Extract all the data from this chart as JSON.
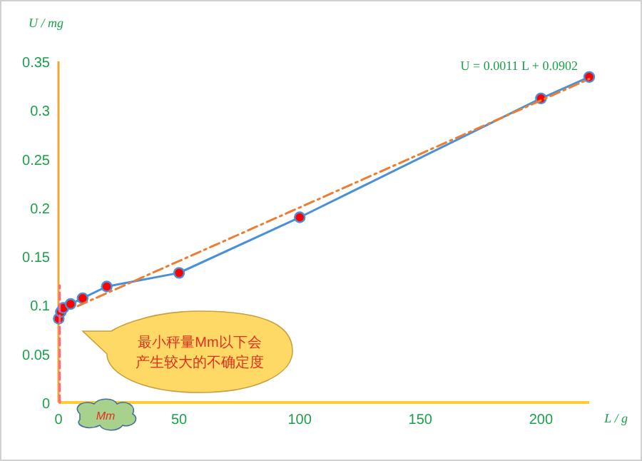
{
  "chart_data": {
    "type": "line",
    "xlabel": "L / g",
    "ylabel": "U / mg",
    "xlim": [
      0,
      220
    ],
    "xticks": [
      0,
      50,
      100,
      150,
      200
    ],
    "ylim": [
      0,
      0.35
    ],
    "yticks": [
      0,
      0.05,
      0.1,
      0.15,
      0.2,
      0.25,
      0.3,
      0.35
    ],
    "grid": false,
    "series": [
      {
        "color": "#4a90d9",
        "marker": "circle",
        "line_style": "solid",
        "x": [
          0.1,
          1,
          2,
          5,
          10,
          20,
          50,
          100,
          200,
          220
        ],
        "values": [
          0.086,
          0.093,
          0.097,
          0.101,
          0.107,
          0.119,
          0.133,
          0.19,
          0.312,
          0.334
        ]
      },
      {
        "color": "#ed7d31",
        "marker": "none",
        "line_style": "dashdot",
        "x": [
          8,
          220
        ],
        "values": [
          0.099,
          0.332
        ]
      },
      {
        "color": "#ff6680",
        "marker": "none",
        "line_style": "dashed",
        "x": [
          0.5,
          0.5
        ],
        "values": [
          0,
          0.12
        ]
      }
    ],
    "annotations": [
      {
        "text": "U = 0.0011 L + 0.0902",
        "x": 220,
        "y": 0.334
      },
      "最小秤量Mm以下会产生较大的不确定度",
      "Mm"
    ]
  }
}
